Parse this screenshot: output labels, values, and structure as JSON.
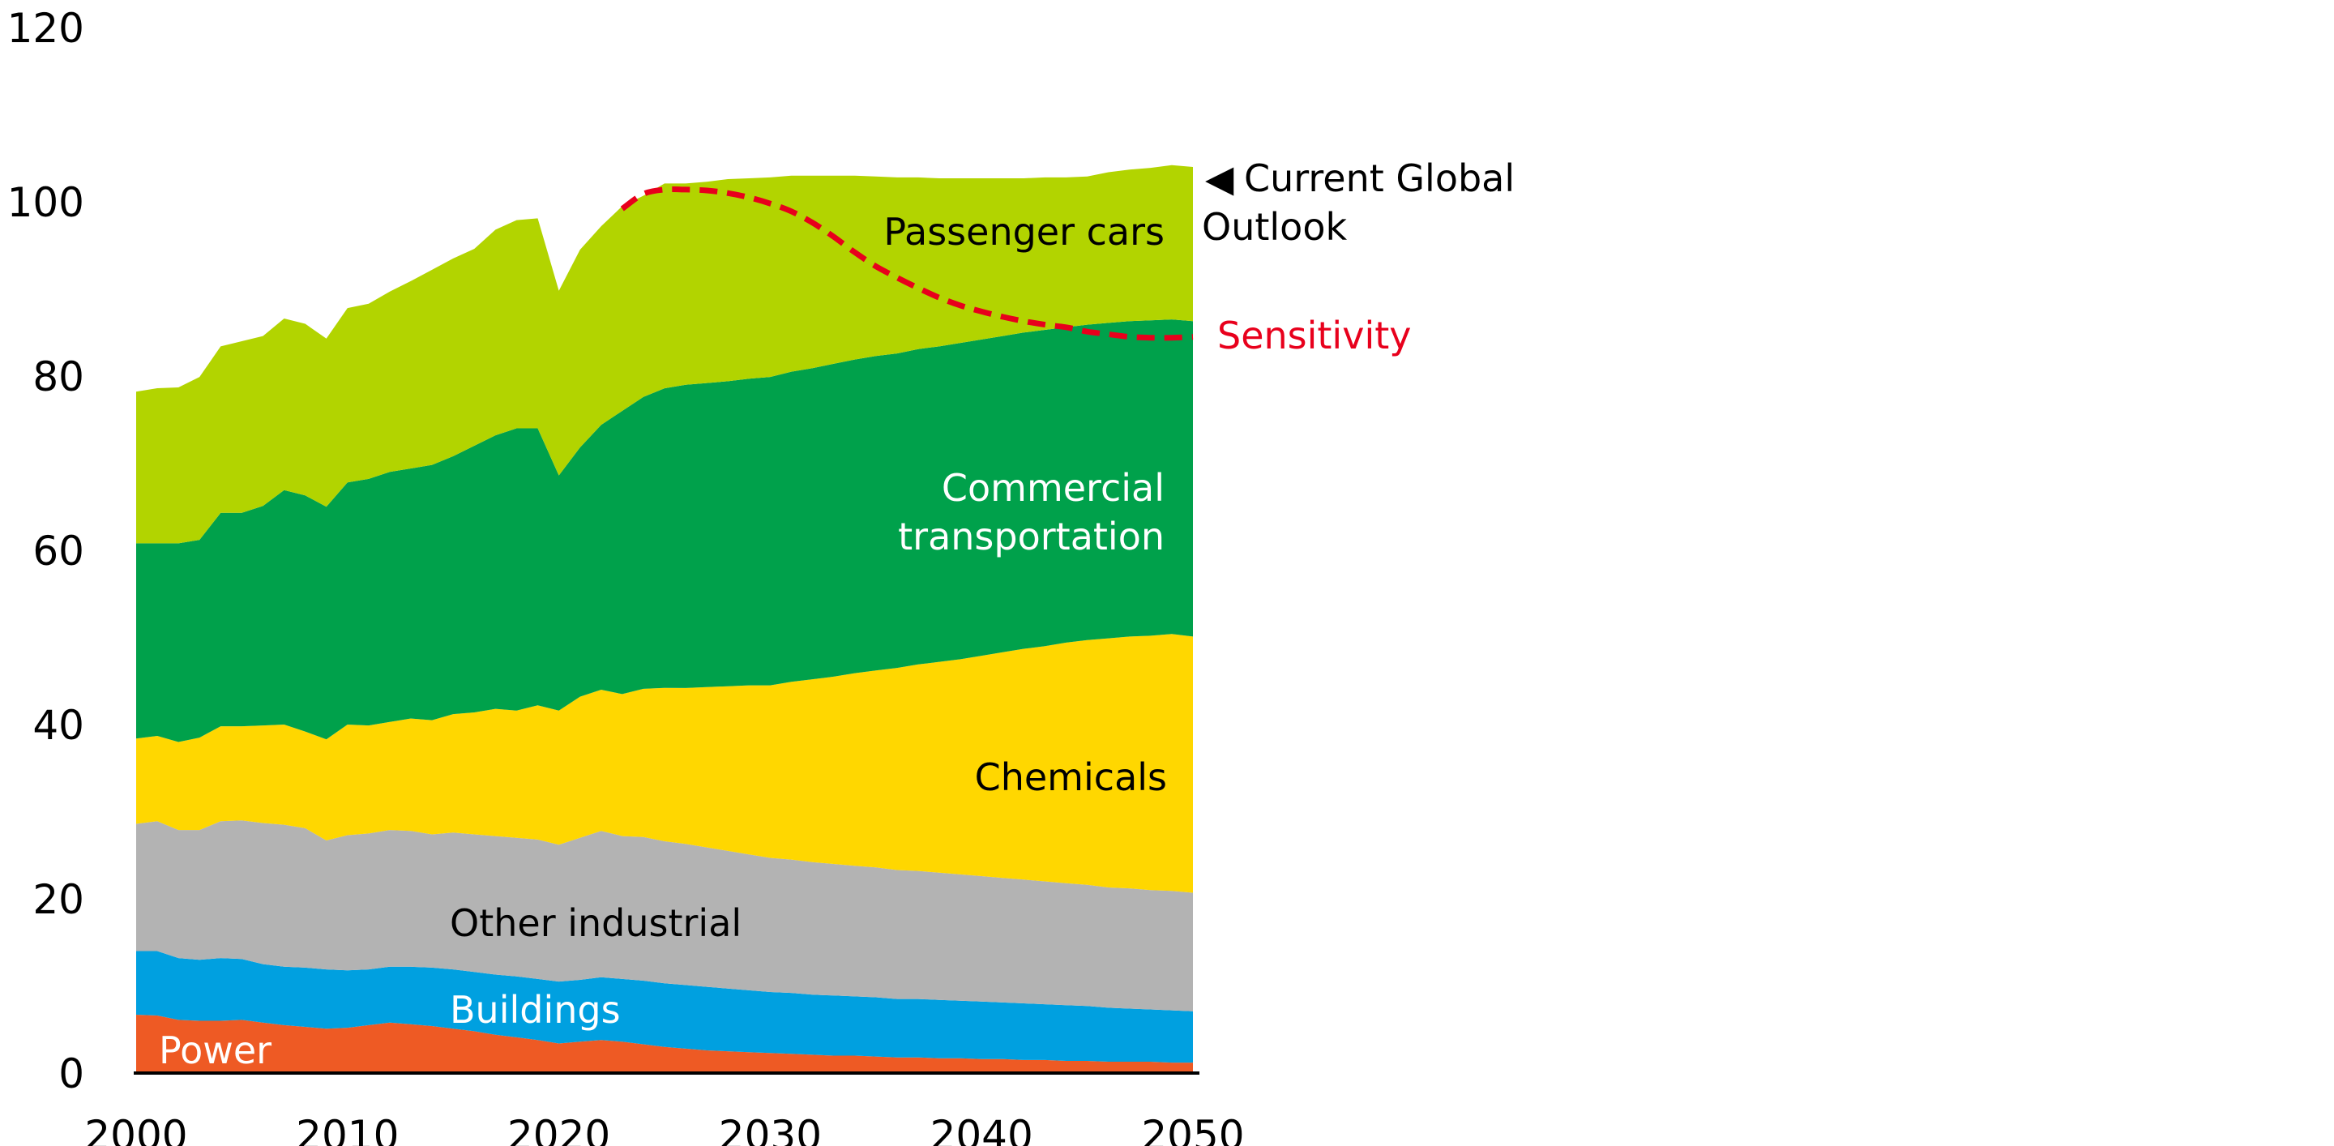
{
  "chart_data": {
    "type": "area",
    "stacked": true,
    "title": "",
    "xlabel": "",
    "ylabel": "",
    "x": [
      2000,
      2001,
      2002,
      2003,
      2004,
      2005,
      2006,
      2007,
      2008,
      2009,
      2010,
      2011,
      2012,
      2013,
      2014,
      2015,
      2016,
      2017,
      2018,
      2019,
      2020,
      2021,
      2022,
      2023,
      2024,
      2025,
      2026,
      2027,
      2028,
      2029,
      2030,
      2031,
      2032,
      2033,
      2034,
      2035,
      2036,
      2037,
      2038,
      2039,
      2040,
      2041,
      2042,
      2043,
      2044,
      2045,
      2046,
      2047,
      2048,
      2049,
      2050
    ],
    "xlim": [
      2000,
      2050
    ],
    "ylim": [
      0,
      120
    ],
    "xticks": [
      "2000",
      "2010",
      "2020",
      "2030",
      "2040",
      "2050"
    ],
    "yticks": [
      "0",
      "20",
      "40",
      "60",
      "80",
      "100",
      "120"
    ],
    "series": [
      {
        "name": "Power",
        "label": "Power",
        "color": "#ee5a24",
        "values": [
          6.7,
          6.6,
          6.1,
          6.0,
          6.0,
          6.1,
          5.8,
          5.5,
          5.3,
          5.1,
          5.2,
          5.5,
          5.8,
          5.6,
          5.4,
          5.1,
          4.8,
          4.4,
          4.1,
          3.8,
          3.4,
          3.6,
          3.8,
          3.6,
          3.3,
          3.0,
          2.8,
          2.6,
          2.5,
          2.4,
          2.3,
          2.2,
          2.1,
          2.0,
          2.0,
          1.9,
          1.8,
          1.8,
          1.7,
          1.7,
          1.6,
          1.6,
          1.5,
          1.5,
          1.4,
          1.4,
          1.3,
          1.3,
          1.3,
          1.2,
          1.2
        ]
      },
      {
        "name": "Buildings",
        "label": "Buildings",
        "color": "#00a0e0",
        "values": [
          7.3,
          7.4,
          7.1,
          7.0,
          7.2,
          7.0,
          6.7,
          6.7,
          6.8,
          6.8,
          6.6,
          6.4,
          6.4,
          6.6,
          6.7,
          6.8,
          6.8,
          6.9,
          7.0,
          7.0,
          7.1,
          7.1,
          7.2,
          7.2,
          7.3,
          7.3,
          7.3,
          7.3,
          7.2,
          7.1,
          7.0,
          7.0,
          6.9,
          6.9,
          6.8,
          6.8,
          6.7,
          6.7,
          6.7,
          6.6,
          6.6,
          6.5,
          6.5,
          6.4,
          6.4,
          6.3,
          6.2,
          6.1,
          6.0,
          6.0,
          5.9
        ]
      },
      {
        "name": "Other industrial",
        "label": "Other industrial",
        "color": "#b3b3b3",
        "values": [
          14.6,
          14.9,
          14.7,
          14.9,
          15.7,
          15.9,
          16.2,
          16.3,
          16.0,
          14.8,
          15.5,
          15.6,
          15.7,
          15.6,
          15.3,
          15.7,
          15.8,
          15.9,
          15.9,
          16.0,
          15.7,
          16.3,
          16.8,
          16.4,
          16.5,
          16.3,
          16.2,
          16.0,
          15.8,
          15.6,
          15.4,
          15.3,
          15.2,
          15.1,
          15.0,
          14.9,
          14.8,
          14.7,
          14.6,
          14.5,
          14.4,
          14.3,
          14.2,
          14.1,
          14.0,
          13.9,
          13.8,
          13.8,
          13.7,
          13.7,
          13.6
        ]
      },
      {
        "name": "Chemicals",
        "label": "Chemicals",
        "color": "#ffd700",
        "values": [
          9.8,
          9.8,
          10.1,
          10.6,
          10.9,
          10.8,
          11.2,
          11.5,
          11.1,
          11.6,
          12.7,
          12.4,
          12.4,
          12.9,
          13.1,
          13.6,
          14.0,
          14.6,
          14.6,
          15.4,
          15.4,
          16.2,
          16.2,
          16.3,
          17.0,
          17.6,
          17.9,
          18.4,
          18.9,
          19.4,
          19.8,
          20.4,
          21.0,
          21.5,
          22.1,
          22.6,
          23.2,
          23.7,
          24.2,
          24.7,
          25.3,
          25.9,
          26.5,
          27.0,
          27.6,
          28.1,
          28.6,
          28.9,
          29.2,
          29.5,
          29.4
        ]
      },
      {
        "name": "Commercial transportation",
        "label": "Commercial\ntransportation",
        "color": "#00a14b",
        "values": [
          22.4,
          22.1,
          22.8,
          22.7,
          24.5,
          24.5,
          25.2,
          26.9,
          27.1,
          26.7,
          27.8,
          28.3,
          28.7,
          28.7,
          29.3,
          29.6,
          30.6,
          31.4,
          32.4,
          31.8,
          27.0,
          28.6,
          30.4,
          32.5,
          33.5,
          34.4,
          34.8,
          34.9,
          35.0,
          35.2,
          35.4,
          35.6,
          35.7,
          35.9,
          36.0,
          36.1,
          36.1,
          36.2,
          36.2,
          36.3,
          36.3,
          36.3,
          36.3,
          36.3,
          36.2,
          36.2,
          36.2,
          36.2,
          36.2,
          36.1,
          36.2
        ]
      },
      {
        "name": "Passenger cars",
        "label": "Passenger cars",
        "color": "#b2d400",
        "values": [
          17.4,
          17.8,
          17.9,
          18.7,
          19.1,
          19.7,
          19.5,
          19.7,
          19.7,
          19.3,
          20.0,
          20.1,
          20.7,
          21.5,
          22.4,
          22.7,
          22.6,
          23.6,
          23.9,
          24.1,
          21.2,
          22.7,
          22.8,
          23.5,
          23.1,
          23.5,
          23.1,
          23.1,
          23.2,
          23.0,
          22.9,
          22.5,
          22.1,
          21.6,
          21.1,
          20.6,
          20.2,
          19.7,
          19.3,
          18.9,
          18.5,
          18.1,
          17.7,
          17.5,
          17.2,
          17.0,
          17.3,
          17.4,
          17.5,
          17.7,
          17.7
        ]
      }
    ],
    "sensitivity": {
      "name": "Sensitivity",
      "color": "#e8001c",
      "x": [
        2023,
        2024,
        2025,
        2026,
        2027,
        2028,
        2029,
        2030,
        2031,
        2032,
        2033,
        2034,
        2035,
        2036,
        2037,
        2038,
        2039,
        2040,
        2041,
        2042,
        2043,
        2044,
        2045,
        2046,
        2047,
        2048,
        2049,
        2050
      ],
      "values": [
        99.2,
        100.9,
        101.4,
        101.4,
        101.3,
        101.0,
        100.5,
        99.8,
        98.9,
        97.6,
        96.0,
        94.2,
        92.6,
        91.3,
        90.1,
        89.0,
        88.1,
        87.4,
        86.8,
        86.3,
        85.9,
        85.6,
        85.1,
        84.8,
        84.5,
        84.4,
        84.4,
        84.5
      ]
    },
    "annotations": {
      "current_global_outlook_line1": "Current Global",
      "current_global_outlook_line2": "Outlook",
      "arrow_glyph": "◀",
      "sensitivity_label": "Sensitivity"
    }
  }
}
